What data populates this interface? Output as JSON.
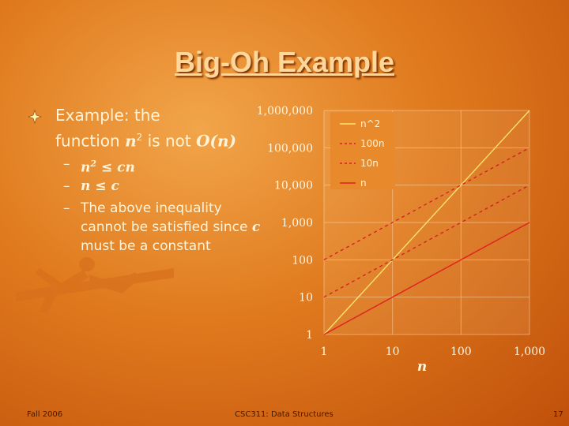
{
  "title": "Big-Oh Example",
  "bullet": {
    "line1": "Example: the",
    "line2_pre": "function ",
    "line2_n": "n",
    "line2_sup": "2",
    "line2_mid": " is not ",
    "line2_math": "O(n)"
  },
  "subbullets": [
    {
      "dash": "–",
      "parts": [
        "n",
        "2",
        " ≤ cn"
      ]
    },
    {
      "dash": "–",
      "parts": [
        "n ≤ c"
      ]
    },
    {
      "dash": "–",
      "text": "The above inequality cannot be satisfied since ",
      "c": "c",
      "text2": " must be a constant"
    }
  ],
  "footer": {
    "left": "Fall 2006",
    "center": "CSC311: Data Structures",
    "right": "17"
  },
  "colors": {
    "n_squared": "#f7e46a",
    "hundred_n": "#d42222",
    "ten_n": "#d42222",
    "n": "#e02020"
  },
  "chart_data": {
    "type": "line",
    "x_scale": "log",
    "y_scale": "log",
    "xlim": [
      1,
      1000
    ],
    "ylim": [
      1,
      1000000
    ],
    "xticks": [
      "1",
      "10",
      "100",
      "1,000"
    ],
    "yticks": [
      "1",
      "10",
      "100",
      "1,000",
      "10,000",
      "100,000",
      "1,000,000"
    ],
    "xlabel": "n",
    "ylabel": "",
    "legend_position": "top-right",
    "x": [
      1,
      1000
    ],
    "series": [
      {
        "name": "n^2",
        "values": [
          1,
          1000000
        ],
        "style": "solid"
      },
      {
        "name": "100n",
        "values": [
          100,
          100000
        ],
        "style": "dashed"
      },
      {
        "name": "10n",
        "values": [
          10,
          10000
        ],
        "style": "dashed"
      },
      {
        "name": "n",
        "values": [
          1,
          1000
        ],
        "style": "solid"
      }
    ]
  }
}
